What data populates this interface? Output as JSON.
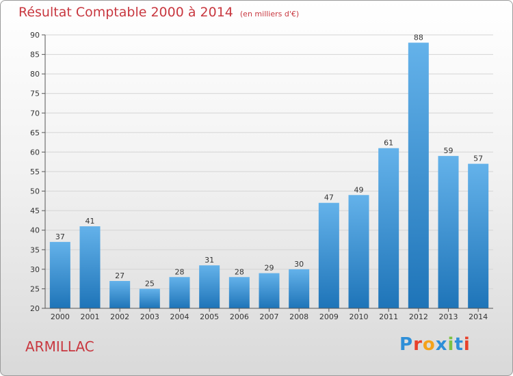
{
  "title": "Résultat Comptable 2000 à 2014",
  "subtitle": "(en milliers d'€)",
  "location": "ARMILLAC",
  "logo": {
    "letters": [
      "P",
      "r",
      "o",
      "x",
      "i",
      "t",
      "i"
    ],
    "colors": [
      "#2e8fd8",
      "#e8402a",
      "#f4a21a",
      "#2e8fd8",
      "#7cc243",
      "#2e8fd8",
      "#e8402a"
    ]
  },
  "colors": {
    "title": "#c8373f",
    "bar_top": "#64b2ea",
    "bar_bottom": "#1e74b8",
    "grid": "#d4d4d4",
    "axis": "#555555"
  },
  "chart_data": {
    "type": "bar",
    "categories": [
      "2000",
      "2001",
      "2002",
      "2003",
      "2004",
      "2005",
      "2006",
      "2007",
      "2008",
      "2009",
      "2010",
      "2011",
      "2012",
      "2013",
      "2014"
    ],
    "values": [
      37,
      41,
      27,
      25,
      28,
      31,
      28,
      29,
      30,
      47,
      49,
      61,
      88,
      59,
      57
    ],
    "ylim": [
      20,
      90
    ],
    "yticks": [
      20,
      25,
      30,
      35,
      40,
      45,
      50,
      55,
      60,
      65,
      70,
      75,
      80,
      85,
      90
    ],
    "grid": true
  }
}
